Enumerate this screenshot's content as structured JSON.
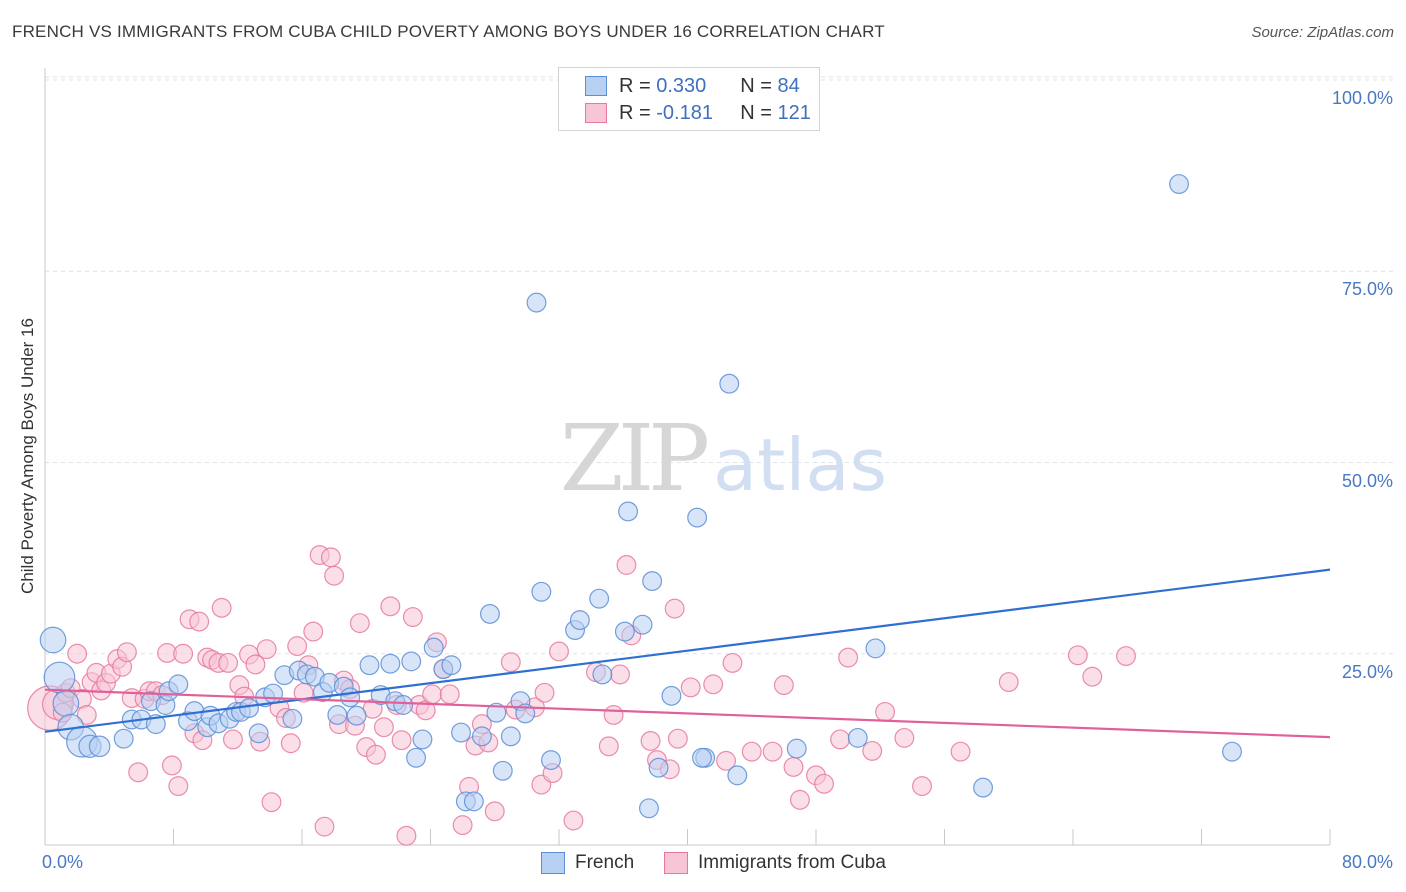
{
  "title": "FRENCH VS IMMIGRANTS FROM CUBA CHILD POVERTY AMONG BOYS UNDER 16 CORRELATION CHART",
  "source": "Source: ZipAtlas.com",
  "watermark": {
    "zip": "ZIP",
    "atlas": "atlas"
  },
  "legend_stats": [
    {
      "r_label": "R =",
      "r_value": "0.330",
      "n_label": "N =",
      "n_value": "84",
      "color": "#5b8ed6",
      "fill": "#b8d0f2"
    },
    {
      "r_label": "R =",
      "r_value": "-0.181",
      "n_label": "N =",
      "n_value": "121",
      "color": "#e8799d",
      "fill": "#f7c5d5"
    }
  ],
  "legend": [
    {
      "label": "French",
      "color": "#5b8ed6",
      "fill": "#b8d0f2"
    },
    {
      "label": "Immigrants from Cuba",
      "color": "#e8799d",
      "fill": "#f7c5d5"
    }
  ],
  "colors": {
    "blue_line": "#2f6fd0",
    "pink_line": "#e0609a",
    "grid": "#dde3ea",
    "axis_text": "#4a78c2"
  },
  "chart_data": {
    "type": "scatter",
    "title": "FRENCH VS IMMIGRANTS FROM CUBA CHILD POVERTY AMONG BOYS UNDER 16 CORRELATION CHART",
    "xlabel": "",
    "ylabel": "Child Poverty Among Boys Under 16",
    "xlim": [
      0,
      80
    ],
    "ylim": [
      0,
      100
    ],
    "x_tick_labels": [
      "0.0%",
      "80.0%"
    ],
    "y_tick_values": [
      25,
      50,
      75,
      100
    ],
    "y_tick_labels": [
      "25.0%",
      "50.0%",
      "75.0%",
      "100.0%"
    ],
    "grid": true,
    "series": [
      {
        "name": "French",
        "r": 0.33,
        "n": 84,
        "trend": {
          "x0": 0,
          "y0": 14.8,
          "x1": 80,
          "y1": 36
        },
        "points": [
          [
            0.5,
            26.8,
            1.5
          ],
          [
            0.9,
            21.9,
            1.8
          ],
          [
            1.3,
            18.5,
            1.5
          ],
          [
            1.6,
            15.4,
            1.5
          ],
          [
            2.3,
            13.5,
            1.8
          ],
          [
            2.8,
            12.9,
            1.3
          ],
          [
            3.4,
            12.9,
            1.2
          ],
          [
            4.9,
            13.9,
            1.1
          ],
          [
            5.4,
            16.4,
            1.1
          ],
          [
            6.0,
            16.4,
            1.1
          ],
          [
            6.6,
            18.8,
            1.1
          ],
          [
            6.9,
            15.8,
            1.1
          ],
          [
            7.5,
            18.3,
            1.1
          ],
          [
            7.7,
            20.1,
            1.1
          ],
          [
            8.3,
            21.0,
            1.1
          ],
          [
            8.9,
            16.2,
            1.1
          ],
          [
            9.3,
            17.5,
            1.1
          ],
          [
            10.1,
            15.4,
            1.1
          ],
          [
            10.3,
            16.9,
            1.1
          ],
          [
            10.8,
            15.9,
            1.1
          ],
          [
            11.5,
            16.5,
            1.1
          ],
          [
            11.9,
            17.4,
            1.1
          ],
          [
            12.2,
            17.4,
            1.1
          ],
          [
            12.7,
            17.9,
            1.1
          ],
          [
            13.3,
            14.6,
            1.1
          ],
          [
            13.7,
            19.3,
            1.1
          ],
          [
            14.2,
            19.8,
            1.1
          ],
          [
            14.9,
            22.2,
            1.1
          ],
          [
            15.4,
            16.5,
            1.1
          ],
          [
            15.8,
            22.8,
            1.1
          ],
          [
            16.3,
            22.3,
            1.1
          ],
          [
            16.8,
            22.0,
            1.1
          ],
          [
            17.3,
            20.0,
            1.1
          ],
          [
            17.7,
            21.2,
            1.1
          ],
          [
            18.2,
            17.0,
            1.1
          ],
          [
            18.6,
            20.7,
            1.1
          ],
          [
            19.0,
            19.3,
            1.1
          ],
          [
            19.4,
            16.9,
            1.1
          ],
          [
            20.2,
            23.5,
            1.1
          ],
          [
            20.9,
            19.6,
            1.1
          ],
          [
            21.5,
            23.7,
            1.1
          ],
          [
            21.8,
            18.8,
            1.1
          ],
          [
            22.3,
            18.3,
            1.1
          ],
          [
            22.8,
            24.0,
            1.1
          ],
          [
            23.1,
            11.4,
            1.1
          ],
          [
            23.5,
            13.8,
            1.1
          ],
          [
            24.2,
            25.8,
            1.1
          ],
          [
            24.8,
            23.0,
            1.1
          ],
          [
            25.3,
            23.5,
            1.1
          ],
          [
            25.9,
            14.7,
            1.1
          ],
          [
            26.2,
            5.7,
            1.1
          ],
          [
            26.7,
            5.7,
            1.1
          ],
          [
            27.2,
            14.2,
            1.1
          ],
          [
            27.7,
            30.2,
            1.1
          ],
          [
            28.1,
            17.3,
            1.1
          ],
          [
            28.5,
            9.7,
            1.1
          ],
          [
            29.0,
            14.2,
            1.1
          ],
          [
            29.6,
            18.8,
            1.1
          ],
          [
            29.9,
            17.2,
            1.1
          ],
          [
            30.6,
            70.9,
            1.1
          ],
          [
            30.9,
            33.1,
            1.1
          ],
          [
            31.5,
            11.1,
            1.1
          ],
          [
            33.0,
            28.1,
            1.1
          ],
          [
            33.3,
            29.4,
            1.1
          ],
          [
            34.5,
            32.2,
            1.1
          ],
          [
            34.7,
            22.3,
            1.1
          ],
          [
            36.1,
            27.9,
            1.1
          ],
          [
            36.3,
            43.6,
            1.1
          ],
          [
            37.2,
            28.8,
            1.1
          ],
          [
            37.6,
            4.8,
            1.1
          ],
          [
            37.8,
            34.5,
            1.1
          ],
          [
            38.2,
            10.1,
            1.1
          ],
          [
            39.0,
            19.5,
            1.1
          ],
          [
            40.6,
            42.8,
            1.1
          ],
          [
            41.1,
            11.4,
            1.1
          ],
          [
            42.6,
            60.3,
            1.1
          ],
          [
            43.1,
            9.1,
            1.1
          ],
          [
            46.8,
            12.6,
            1.1
          ],
          [
            50.6,
            14.0,
            1.1
          ],
          [
            51.7,
            25.7,
            1.1
          ],
          [
            58.4,
            7.5,
            1.1
          ],
          [
            70.6,
            86.4,
            1.1
          ],
          [
            73.9,
            12.2,
            1.1
          ],
          [
            40.9,
            11.4,
            1.1
          ]
        ]
      },
      {
        "name": "Immigrants from Cuba",
        "r": -0.181,
        "n": 121,
        "trend": {
          "x0": 0,
          "y0": 20.3,
          "x1": 80,
          "y1": 14.1
        },
        "points": [
          [
            0.3,
            17.9,
            2.6
          ],
          [
            0.8,
            18.4,
            1.8
          ],
          [
            1.1,
            17.3,
            1.1
          ],
          [
            1.3,
            19.9,
            1.1
          ],
          [
            1.6,
            20.5,
            1.1
          ],
          [
            2.0,
            25.0,
            1.1
          ],
          [
            2.3,
            19.1,
            1.1
          ],
          [
            2.6,
            17.0,
            1.1
          ],
          [
            2.9,
            21.3,
            1.1
          ],
          [
            3.2,
            22.5,
            1.1
          ],
          [
            3.5,
            20.2,
            1.1
          ],
          [
            3.8,
            21.2,
            1.1
          ],
          [
            4.1,
            22.4,
            1.1
          ],
          [
            4.5,
            24.3,
            1.1
          ],
          [
            4.8,
            23.3,
            1.1
          ],
          [
            5.1,
            25.2,
            1.1
          ],
          [
            5.4,
            19.2,
            1.1
          ],
          [
            5.8,
            9.5,
            1.1
          ],
          [
            6.2,
            19.1,
            1.1
          ],
          [
            6.5,
            20.1,
            1.1
          ],
          [
            6.9,
            20.1,
            1.1
          ],
          [
            7.3,
            19.6,
            1.1
          ],
          [
            7.6,
            25.1,
            1.1
          ],
          [
            7.9,
            10.4,
            1.1
          ],
          [
            8.3,
            7.7,
            1.1
          ],
          [
            8.6,
            25.0,
            1.1
          ],
          [
            9.0,
            29.5,
            1.1
          ],
          [
            9.3,
            14.6,
            1.1
          ],
          [
            9.6,
            29.2,
            1.1
          ],
          [
            9.8,
            13.7,
            1.1
          ],
          [
            10.1,
            24.5,
            1.1
          ],
          [
            10.4,
            24.2,
            1.1
          ],
          [
            10.8,
            23.8,
            1.1
          ],
          [
            11.0,
            31.0,
            1.1
          ],
          [
            11.4,
            23.8,
            1.1
          ],
          [
            11.7,
            13.8,
            1.1
          ],
          [
            12.1,
            20.9,
            1.1
          ],
          [
            12.4,
            19.4,
            1.1
          ],
          [
            12.7,
            24.9,
            1.1
          ],
          [
            13.1,
            23.6,
            1.1
          ],
          [
            13.4,
            13.5,
            1.1
          ],
          [
            13.8,
            25.6,
            1.1
          ],
          [
            14.1,
            5.6,
            1.1
          ],
          [
            14.6,
            17.9,
            1.1
          ],
          [
            15.0,
            16.6,
            1.1
          ],
          [
            15.3,
            13.3,
            1.1
          ],
          [
            15.7,
            26.0,
            1.1
          ],
          [
            16.1,
            19.9,
            1.1
          ],
          [
            16.4,
            23.5,
            1.1
          ],
          [
            16.7,
            27.9,
            1.1
          ],
          [
            17.1,
            37.9,
            1.1
          ],
          [
            17.4,
            2.4,
            1.1
          ],
          [
            17.8,
            37.6,
            1.1
          ],
          [
            18.0,
            35.2,
            1.1
          ],
          [
            18.3,
            15.8,
            1.1
          ],
          [
            18.6,
            21.5,
            1.1
          ],
          [
            19.0,
            20.4,
            1.1
          ],
          [
            19.3,
            15.6,
            1.1
          ],
          [
            19.6,
            29.0,
            1.1
          ],
          [
            20.0,
            12.8,
            1.1
          ],
          [
            20.4,
            17.8,
            1.1
          ],
          [
            20.6,
            11.8,
            1.1
          ],
          [
            21.1,
            15.4,
            1.1
          ],
          [
            21.5,
            31.2,
            1.1
          ],
          [
            21.9,
            18.3,
            1.1
          ],
          [
            22.2,
            13.7,
            1.1
          ],
          [
            22.5,
            1.2,
            1.1
          ],
          [
            22.9,
            29.8,
            1.1
          ],
          [
            23.3,
            18.3,
            1.1
          ],
          [
            23.7,
            17.6,
            1.1
          ],
          [
            24.1,
            19.7,
            1.1
          ],
          [
            24.4,
            26.5,
            1.1
          ],
          [
            24.8,
            23.0,
            1.1
          ],
          [
            25.2,
            19.7,
            1.1
          ],
          [
            26.0,
            2.6,
            1.1
          ],
          [
            26.4,
            7.6,
            1.1
          ],
          [
            26.8,
            13.0,
            1.1
          ],
          [
            27.2,
            15.8,
            1.1
          ],
          [
            27.6,
            13.4,
            1.1
          ],
          [
            28.0,
            4.4,
            1.1
          ],
          [
            29.0,
            23.9,
            1.1
          ],
          [
            29.3,
            17.7,
            1.1
          ],
          [
            30.5,
            18.0,
            1.1
          ],
          [
            30.9,
            7.9,
            1.1
          ],
          [
            31.1,
            19.9,
            1.1
          ],
          [
            31.6,
            9.4,
            1.1
          ],
          [
            32.0,
            25.3,
            1.1
          ],
          [
            32.9,
            3.2,
            1.1
          ],
          [
            34.3,
            22.6,
            1.1
          ],
          [
            35.1,
            12.9,
            1.1
          ],
          [
            35.4,
            17.0,
            1.1
          ],
          [
            35.8,
            22.3,
            1.1
          ],
          [
            36.2,
            36.6,
            1.1
          ],
          [
            36.5,
            27.4,
            1.1
          ],
          [
            37.7,
            13.6,
            1.1
          ],
          [
            38.1,
            11.1,
            1.1
          ],
          [
            38.9,
            9.9,
            1.1
          ],
          [
            39.2,
            30.9,
            1.1
          ],
          [
            39.4,
            13.9,
            1.1
          ],
          [
            40.2,
            20.6,
            1.1
          ],
          [
            41.6,
            21.0,
            1.1
          ],
          [
            42.4,
            11.0,
            1.1
          ],
          [
            42.8,
            23.8,
            1.1
          ],
          [
            44.0,
            12.2,
            1.1
          ],
          [
            45.3,
            12.2,
            1.1
          ],
          [
            46.0,
            20.9,
            1.1
          ],
          [
            46.6,
            10.2,
            1.1
          ],
          [
            47.0,
            5.9,
            1.1
          ],
          [
            48.0,
            9.1,
            1.1
          ],
          [
            48.5,
            8.0,
            1.1
          ],
          [
            49.5,
            13.8,
            1.1
          ],
          [
            50.0,
            24.5,
            1.1
          ],
          [
            51.5,
            12.3,
            1.1
          ],
          [
            52.3,
            17.4,
            1.1
          ],
          [
            53.5,
            14.0,
            1.1
          ],
          [
            54.6,
            7.7,
            1.1
          ],
          [
            57.0,
            12.2,
            1.1
          ],
          [
            60.0,
            21.3,
            1.1
          ],
          [
            64.3,
            24.8,
            1.1
          ],
          [
            65.2,
            22.0,
            1.1
          ],
          [
            67.3,
            24.7,
            1.1
          ]
        ]
      }
    ]
  }
}
